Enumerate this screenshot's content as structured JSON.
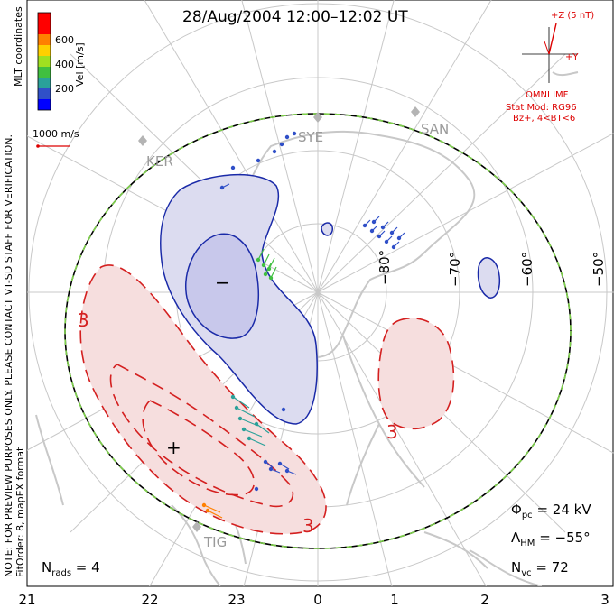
{
  "title": "28/Aug/2004 12:00–12:02 UT",
  "colorbar": {
    "title": "Vel [m/s]",
    "ticks": [
      "600",
      "400",
      "200"
    ],
    "colors": [
      "#0000ff",
      "#3050c8",
      "#2aa19a",
      "#40c040",
      "#a0e020",
      "#ffd000",
      "#ff8000",
      "#ff0000"
    ]
  },
  "coordinates_label": "MLT coordinates",
  "scale_vector_label": "1000 m/s",
  "imf": {
    "z_label": "+Z (5 nT)",
    "y_label": "+Y",
    "source_label": "OMNI IMF",
    "model_line1": "Stat Mod: RG96",
    "model_line2": "Bz+, 4<BT<6"
  },
  "side_note_1": "NOTE: FOR PREVIEW PURPOSES ONLY. PLEASE CONTACT VT-SD STAFF FOR VERIFICATION.",
  "side_note_2": "FitOrder: 8, mapEX format",
  "sites": [
    "SYE",
    "SAN",
    "KER",
    "TIG"
  ],
  "latitude_labels": [
    "−80°",
    "−70°",
    "−60°",
    "−50°"
  ],
  "mlt_labels": [
    "21",
    "22",
    "23",
    "0",
    "1",
    "2",
    "3"
  ],
  "contour_labels": [
    "3",
    "3",
    "3"
  ],
  "symbols": {
    "min": "−",
    "max": "+"
  },
  "stats": {
    "phi_pc": "24 kV",
    "lambda_hm": "−55°",
    "n_vc": "72",
    "n_rads": "4"
  },
  "colors": {
    "negative_fill": "#dcdcf0",
    "negative_line": "#1a2aa8",
    "positive_fill": "#f6dede",
    "positive_line": "#d42020",
    "grid": "#c8c8c8",
    "land": "#c8c8c8",
    "boundary_green": "#7ed04b",
    "imf": "#dd0000"
  }
}
